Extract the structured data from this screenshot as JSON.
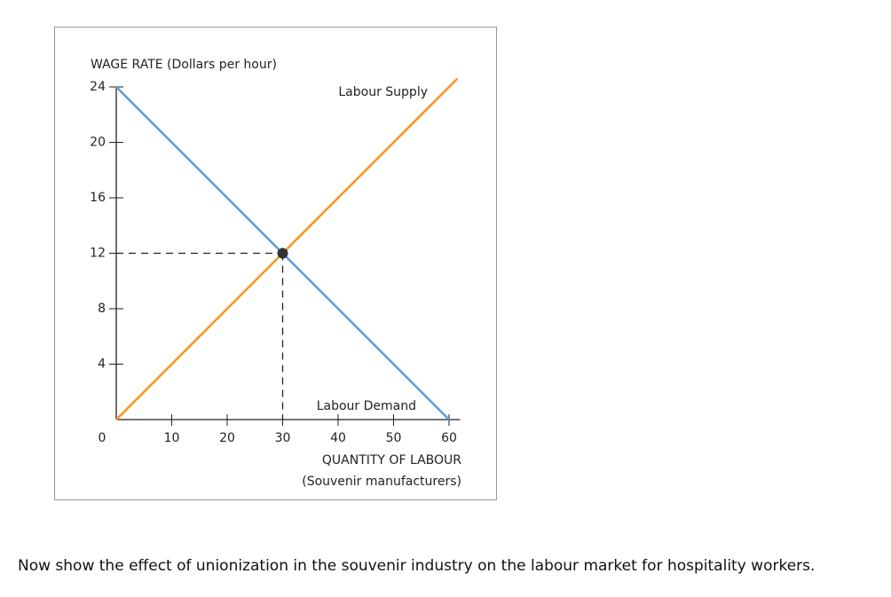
{
  "chart_data": {
    "type": "line",
    "y_label": "WAGE RATE (Dollars per hour)",
    "x_label": [
      "QUANTITY OF LABOUR",
      "(Souvenir manufacturers)"
    ],
    "series": [
      {
        "name": "Labour Supply",
        "color": "#f7941d",
        "x": [
          0,
          61.5
        ],
        "values": [
          0,
          24.6
        ]
      },
      {
        "name": "Labour Demand",
        "color": "#5b9bd5",
        "x": [
          0,
          60
        ],
        "values": [
          24,
          0
        ]
      }
    ],
    "equilibrium": {
      "x": 30,
      "y": 12,
      "color": "#333333"
    },
    "xlim": [
      0,
      62
    ],
    "ylim": [
      0,
      24
    ],
    "xticks": [
      0,
      10,
      20,
      30,
      40,
      50,
      60
    ],
    "yticks": [
      4,
      8,
      12,
      16,
      20,
      24
    ]
  },
  "question": "Now show the effect of unionization in the souvenir industry on the labour market for hospitality workers."
}
